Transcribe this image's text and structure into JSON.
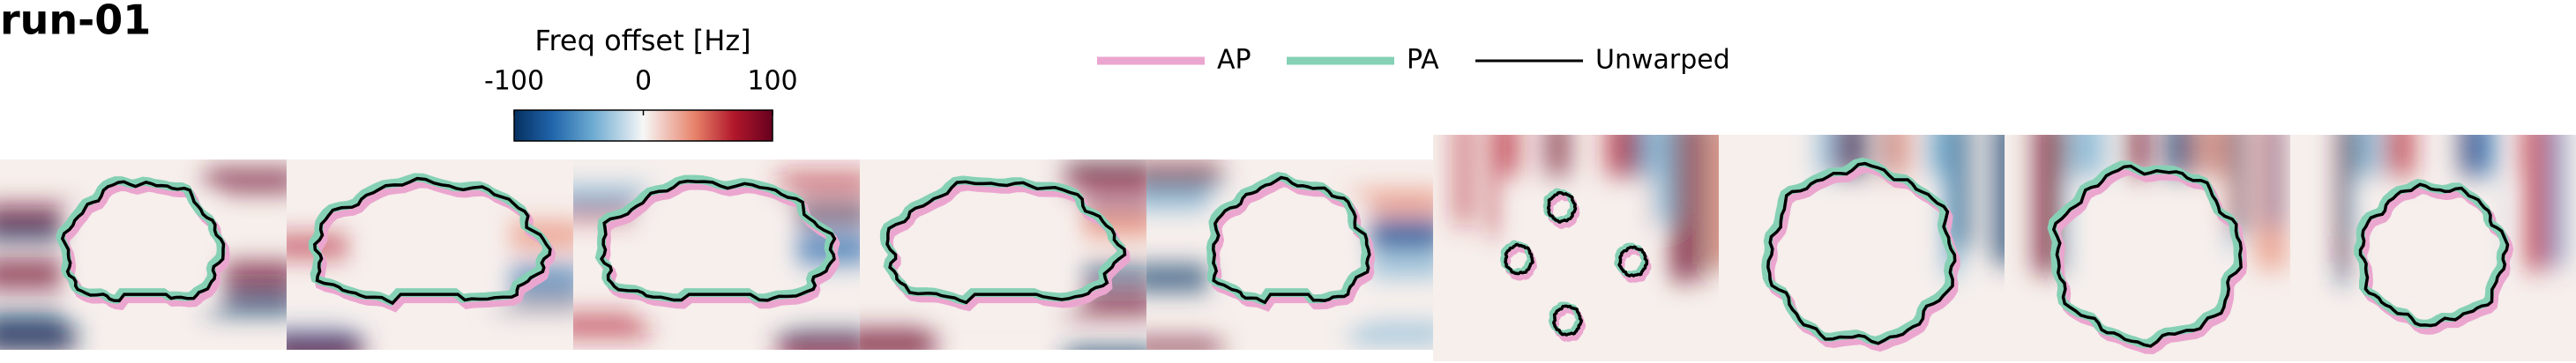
{
  "title": "run-01",
  "colorbar": {
    "label": "Freq offset [Hz]",
    "lim": [
      -100,
      100
    ],
    "ticks": [
      -100,
      0,
      100
    ]
  },
  "legend": [
    {
      "name": "AP",
      "color": "#eba6cf"
    },
    {
      "name": "PA",
      "color": "#86d1b6"
    },
    {
      "name": "Unwarped",
      "color": "#000000"
    }
  ]
}
